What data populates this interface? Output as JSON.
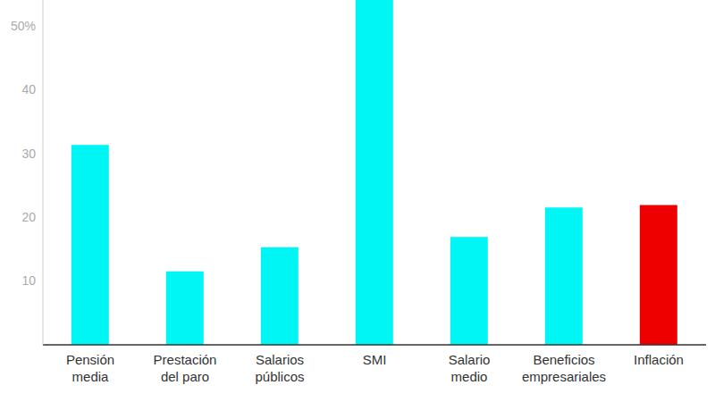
{
  "chart_data": {
    "type": "bar",
    "categories": [
      "Pensión media",
      "Prestación del paro",
      "Salarios públicos",
      "SMI",
      "Salario medio",
      "Beneficios empresariales",
      "Inflación"
    ],
    "values": [
      31.3,
      11.5,
      15.3,
      54,
      16.9,
      21.5,
      21.9
    ],
    "colors": [
      "#00f5f5",
      "#00f5f5",
      "#00f5f5",
      "#00f5f5",
      "#00f5f5",
      "#00f5f5",
      "#ee0000"
    ],
    "ylim": [
      0,
      54
    ],
    "yticks": [
      10,
      20,
      30,
      40,
      {
        "value": 50,
        "label": "50%"
      }
    ],
    "grid": false
  }
}
